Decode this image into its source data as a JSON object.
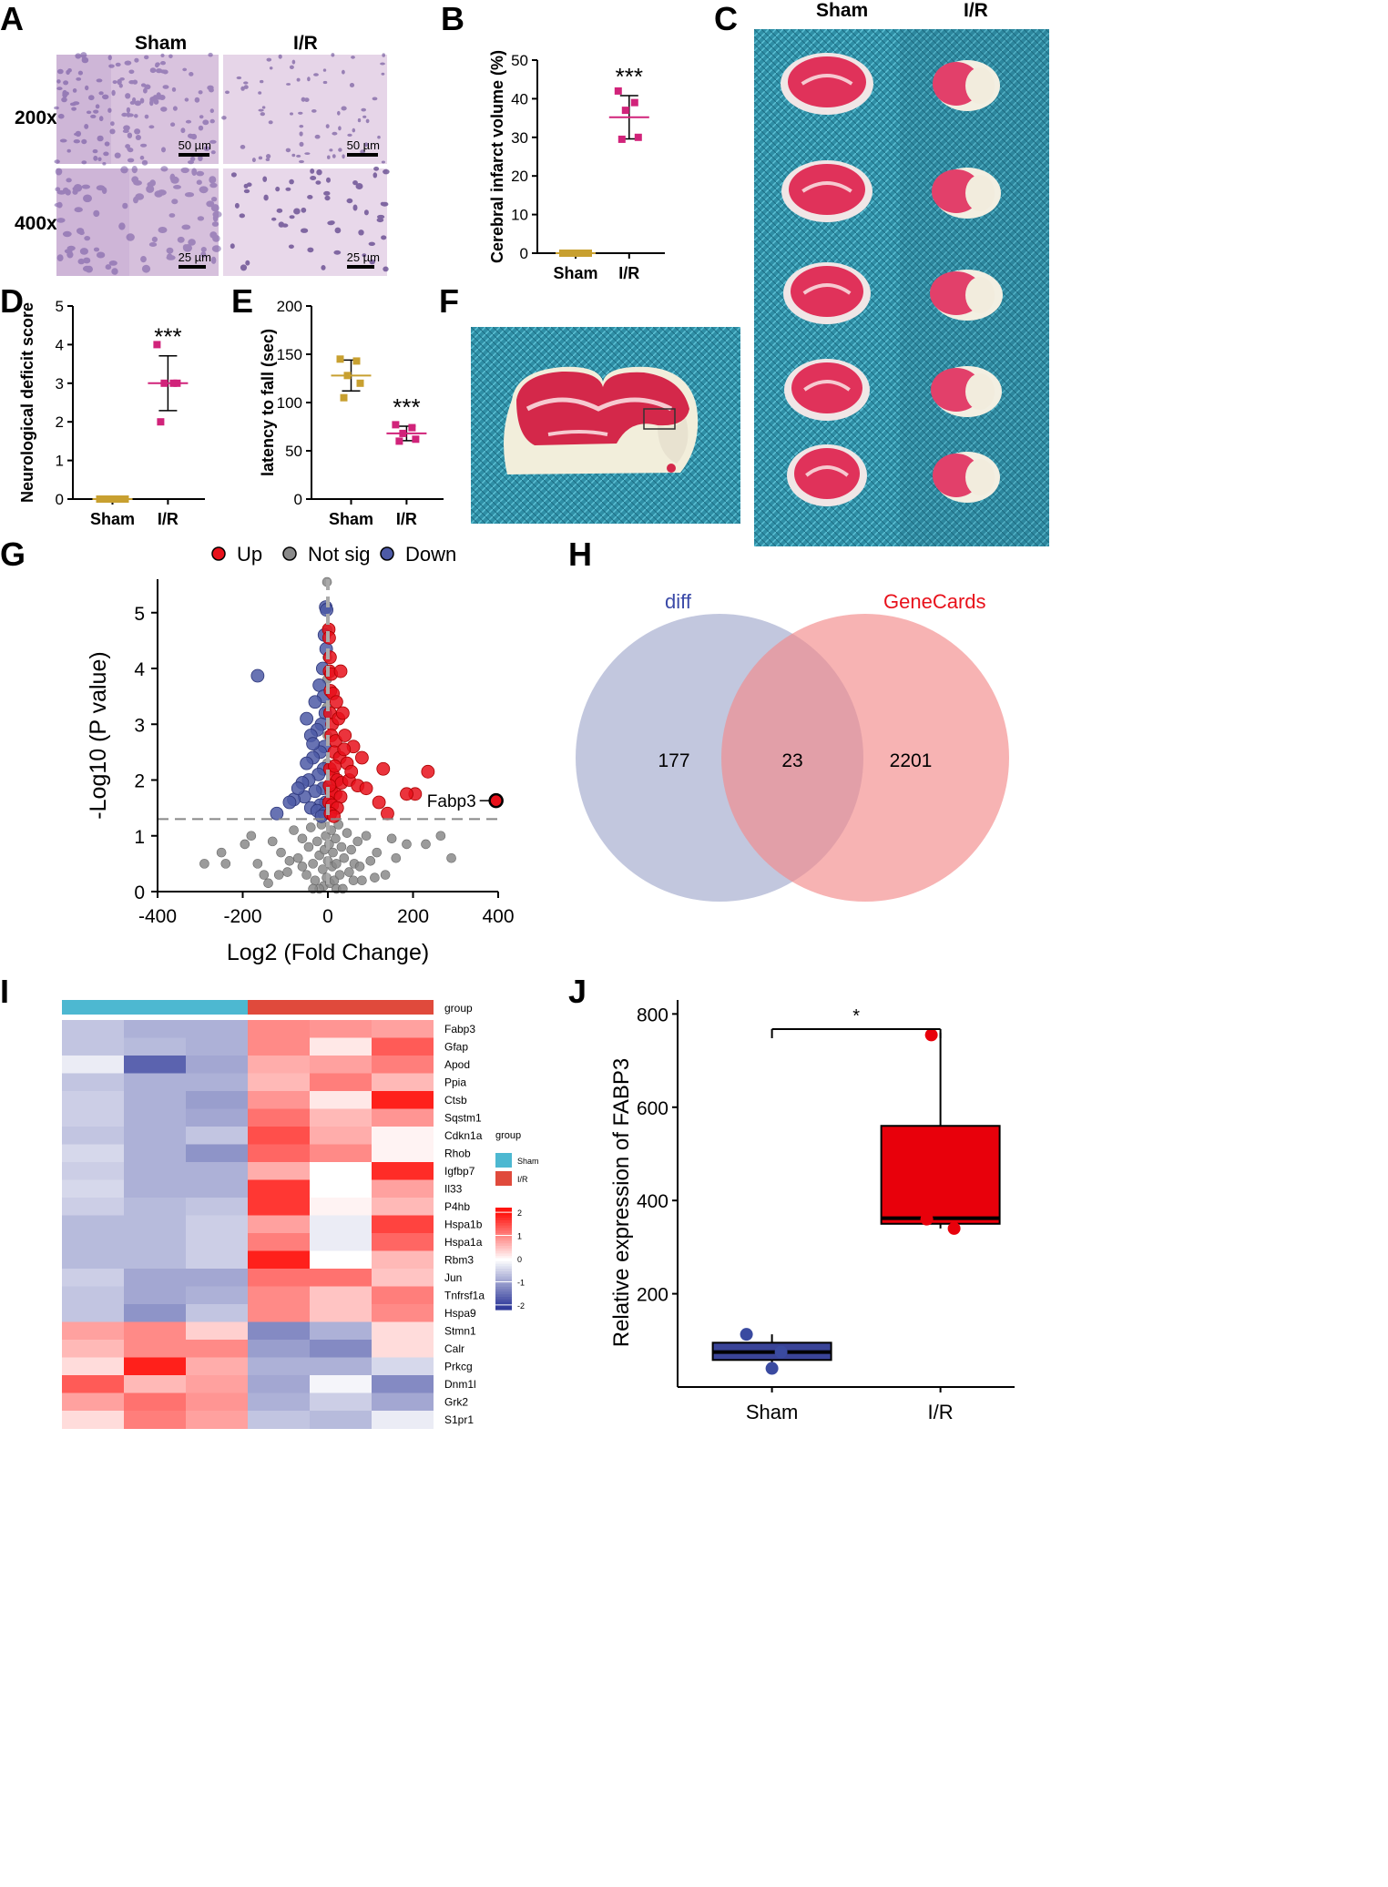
{
  "panels": {
    "A": {
      "label": "A",
      "col_headers": [
        "Sham",
        "I/R"
      ],
      "row_headers": [
        "200x",
        "400x"
      ],
      "scale_bars": [
        "50 µm",
        "50 µm",
        "25 µm",
        "25 µm"
      ]
    },
    "B": {
      "label": "B"
    },
    "C": {
      "label": "C",
      "col_headers": [
        "Sham",
        "I/R"
      ]
    },
    "D": {
      "label": "D"
    },
    "E": {
      "label": "E"
    },
    "F": {
      "label": "F"
    },
    "G": {
      "label": "G"
    },
    "H": {
      "label": "H"
    },
    "I": {
      "label": "I"
    },
    "J": {
      "label": "J"
    }
  },
  "chart_data": [
    {
      "id": "B",
      "type": "scatter",
      "ylabel": "Cerebral infarct volume (%)",
      "categories": [
        "Sham",
        "I/R"
      ],
      "ylim": [
        0,
        50
      ],
      "yticks": [
        0,
        10,
        20,
        30,
        40,
        50
      ],
      "series": [
        {
          "name": "Sham",
          "values": [
            0,
            0,
            0,
            0,
            0
          ],
          "mean": 0,
          "sd": 0,
          "color": "#c8a030"
        },
        {
          "name": "I/R",
          "values": [
            42,
            39,
            37,
            30,
            29.5
          ],
          "mean": 35.2,
          "sd": 5.6,
          "color": "#d1237a"
        }
      ],
      "annotation": "***"
    },
    {
      "id": "D",
      "type": "scatter",
      "ylabel": "Neurological deficit score",
      "categories": [
        "Sham",
        "I/R"
      ],
      "ylim": [
        0,
        5
      ],
      "yticks": [
        0,
        1,
        2,
        3,
        4,
        5
      ],
      "series": [
        {
          "name": "Sham",
          "values": [
            0,
            0,
            0,
            0,
            0
          ],
          "mean": 0,
          "sd": 0,
          "color": "#c8a030"
        },
        {
          "name": "I/R",
          "values": [
            4,
            3,
            3,
            3,
            2
          ],
          "mean": 3,
          "sd": 0.71,
          "color": "#d1237a"
        }
      ],
      "annotation": "***"
    },
    {
      "id": "E",
      "type": "scatter",
      "ylabel": "latency to fall (sec)",
      "categories": [
        "Sham",
        "I/R"
      ],
      "ylim": [
        0,
        200
      ],
      "yticks": [
        0,
        50,
        100,
        150,
        200
      ],
      "series": [
        {
          "name": "Sham",
          "values": [
            145,
            143,
            128,
            120,
            105
          ],
          "mean": 128,
          "sd": 16,
          "color": "#c8a030"
        },
        {
          "name": "I/R",
          "values": [
            77,
            74,
            68,
            62,
            60
          ],
          "mean": 68,
          "sd": 7.5,
          "color": "#d1237a"
        }
      ],
      "annotation": "***"
    },
    {
      "id": "G",
      "type": "scatter",
      "xlabel": "Log2 (Fold Change)",
      "ylabel": "-Log10 (P value)",
      "xlim": [
        -400,
        400
      ],
      "ylim": [
        0,
        5.6
      ],
      "xticks": [
        -400,
        -200,
        0,
        200,
        400
      ],
      "yticks": [
        0,
        1,
        2,
        3,
        4,
        5
      ],
      "threshold_y": 1.3,
      "legend": [
        "Up",
        "Not sig",
        "Down"
      ],
      "colors": {
        "Up": "#e8111b",
        "Not sig": "#8a8a8a",
        "Down": "#4d5aa6"
      },
      "highlight": {
        "gene": "Fabp3",
        "x": 395,
        "y": 1.63
      },
      "up_points": [
        [
          2,
          4.7
        ],
        [
          3,
          4.55
        ],
        [
          5,
          4.2
        ],
        [
          4,
          3.95
        ],
        [
          8,
          3.9
        ],
        [
          30,
          3.95
        ],
        [
          6,
          3.6
        ],
        [
          12,
          3.55
        ],
        [
          20,
          3.4
        ],
        [
          5,
          3.2
        ],
        [
          10,
          3.0
        ],
        [
          25,
          3.1
        ],
        [
          35,
          3.2
        ],
        [
          8,
          2.8
        ],
        [
          18,
          2.7
        ],
        [
          40,
          2.8
        ],
        [
          60,
          2.6
        ],
        [
          15,
          2.5
        ],
        [
          28,
          2.4
        ],
        [
          45,
          2.3
        ],
        [
          5,
          2.2
        ],
        [
          12,
          2.1
        ],
        [
          22,
          2.0
        ],
        [
          32,
          1.95
        ],
        [
          50,
          2.0
        ],
        [
          70,
          1.9
        ],
        [
          8,
          1.8
        ],
        [
          18,
          1.75
        ],
        [
          30,
          1.7
        ],
        [
          3,
          1.6
        ],
        [
          10,
          1.55
        ],
        [
          22,
          1.5
        ],
        [
          6,
          1.4
        ],
        [
          14,
          1.35
        ],
        [
          4,
          1.9
        ],
        [
          16,
          2.25
        ],
        [
          38,
          2.55
        ],
        [
          55,
          2.15
        ],
        [
          130,
          2.2
        ],
        [
          235,
          2.15
        ],
        [
          205,
          1.75
        ],
        [
          185,
          1.75
        ],
        [
          120,
          1.6
        ],
        [
          140,
          1.4
        ],
        [
          90,
          1.85
        ],
        [
          80,
          2.4
        ]
      ],
      "down_points": [
        [
          -5,
          5.1
        ],
        [
          -3,
          5.05
        ],
        [
          -8,
          4.6
        ],
        [
          -4,
          4.35
        ],
        [
          -12,
          4.0
        ],
        [
          -165,
          3.87
        ],
        [
          -20,
          3.7
        ],
        [
          -10,
          3.5
        ],
        [
          -30,
          3.4
        ],
        [
          -6,
          3.2
        ],
        [
          -15,
          3.0
        ],
        [
          -25,
          2.9
        ],
        [
          -40,
          2.8
        ],
        [
          -8,
          2.6
        ],
        [
          -18,
          2.5
        ],
        [
          -35,
          2.4
        ],
        [
          -50,
          2.3
        ],
        [
          -10,
          2.2
        ],
        [
          -22,
          2.1
        ],
        [
          -45,
          2.0
        ],
        [
          -60,
          1.95
        ],
        [
          -12,
          1.85
        ],
        [
          -30,
          1.8
        ],
        [
          -55,
          1.7
        ],
        [
          -80,
          1.65
        ],
        [
          -5,
          1.6
        ],
        [
          -18,
          1.55
        ],
        [
          -40,
          1.5
        ],
        [
          -90,
          1.6
        ],
        [
          -25,
          1.45
        ],
        [
          -8,
          1.4
        ],
        [
          -120,
          1.4
        ],
        [
          -15,
          1.35
        ],
        [
          -35,
          2.65
        ],
        [
          -50,
          3.1
        ],
        [
          -70,
          1.85
        ]
      ],
      "ns_points": [
        [
          -2,
          5.55
        ],
        [
          -3,
          5.1
        ],
        [
          -1,
          4.7
        ],
        [
          -1,
          4.2
        ],
        [
          -2,
          3.8
        ],
        [
          -3,
          3.3
        ],
        [
          -1,
          2.8
        ],
        [
          -2,
          2.3
        ],
        [
          -1,
          1.9
        ],
        [
          -2,
          1.5
        ],
        [
          -250,
          0.7
        ],
        [
          -290,
          0.5
        ],
        [
          -195,
          0.85
        ],
        [
          -165,
          0.5
        ],
        [
          -150,
          0.3
        ],
        [
          -130,
          0.9
        ],
        [
          -110,
          0.7
        ],
        [
          -95,
          0.35
        ],
        [
          -80,
          1.1
        ],
        [
          -70,
          0.6
        ],
        [
          -60,
          0.95
        ],
        [
          -50,
          0.3
        ],
        [
          -45,
          0.8
        ],
        [
          -40,
          1.15
        ],
        [
          -35,
          0.5
        ],
        [
          -30,
          0.2
        ],
        [
          -25,
          0.9
        ],
        [
          -20,
          0.65
        ],
        [
          -15,
          1.2
        ],
        [
          -12,
          0.4
        ],
        [
          -10,
          0.1
        ],
        [
          -8,
          0.75
        ],
        [
          -5,
          1.0
        ],
        [
          -3,
          0.25
        ],
        [
          0,
          0.55
        ],
        [
          3,
          0.85
        ],
        [
          5,
          0.15
        ],
        [
          8,
          1.1
        ],
        [
          10,
          0.45
        ],
        [
          12,
          0.7
        ],
        [
          15,
          0.2
        ],
        [
          18,
          0.95
        ],
        [
          20,
          0.5
        ],
        [
          25,
          1.2
        ],
        [
          28,
          0.3
        ],
        [
          32,
          0.8
        ],
        [
          38,
          0.6
        ],
        [
          45,
          1.05
        ],
        [
          50,
          0.35
        ],
        [
          55,
          0.75
        ],
        [
          62,
          0.5
        ],
        [
          70,
          0.9
        ],
        [
          80,
          0.2
        ],
        [
          90,
          1.0
        ],
        [
          100,
          0.55
        ],
        [
          115,
          0.7
        ],
        [
          135,
          0.3
        ],
        [
          150,
          0.95
        ],
        [
          160,
          0.6
        ],
        [
          185,
          0.85
        ],
        [
          230,
          0.85
        ],
        [
          265,
          1.0
        ],
        [
          290,
          0.6
        ],
        [
          -180,
          1.0
        ],
        [
          -240,
          0.5
        ],
        [
          -140,
          0.15
        ],
        [
          -20,
          0.05
        ],
        [
          20,
          0.05
        ],
        [
          -60,
          0.45
        ],
        [
          60,
          0.2
        ],
        [
          35,
          0.05
        ],
        [
          -35,
          0.05
        ],
        [
          75,
          0.45
        ],
        [
          -90,
          0.55
        ],
        [
          110,
          0.25
        ],
        [
          -115,
          0.3
        ]
      ]
    },
    {
      "id": "H",
      "type": "venn",
      "sets": [
        {
          "name": "diff",
          "only": 177,
          "color": "#9aa2c8"
        },
        {
          "name": "GeneCards",
          "only": 2201,
          "color": "#f28b8b"
        }
      ],
      "intersection": 23
    },
    {
      "id": "I",
      "type": "heatmap",
      "group_label": "group",
      "groups": [
        "Sham",
        "Sham",
        "Sham",
        "I/R",
        "I/R",
        "I/R"
      ],
      "group_colors": {
        "Sham": "#4db8d1",
        "I/R": "#e04a3c"
      },
      "legend_title": "group",
      "legend_ticks": [
        2,
        1,
        0,
        -1,
        -2
      ],
      "rows": [
        "Fabp3",
        "Gfap",
        "Apod",
        "Ppia",
        "Ctsb",
        "Sqstm1",
        "Cdkn1a",
        "Rhob",
        "Igfbp7",
        "Il33",
        "P4hb",
        "Hspa1b",
        "Hspa1a",
        "Rbm3",
        "Jun",
        "Tnfrsf1a",
        "Hspa9",
        "Stmn1",
        "Calr",
        "Prkcg",
        "Dnm1l",
        "Grk2",
        "S1pr1"
      ],
      "values": [
        [
          -0.6,
          -0.8,
          -0.8,
          1.0,
          0.9,
          0.8
        ],
        [
          -0.6,
          -0.7,
          -0.8,
          1.0,
          0.2,
          1.4
        ],
        [
          -0.2,
          -1.6,
          -0.9,
          0.7,
          0.8,
          1.1
        ],
        [
          -0.6,
          -0.8,
          -0.8,
          0.6,
          1.1,
          0.6
        ],
        [
          -0.5,
          -0.8,
          -1.0,
          0.9,
          0.2,
          1.9
        ],
        [
          -0.5,
          -0.8,
          -0.9,
          1.2,
          0.6,
          0.9
        ],
        [
          -0.6,
          -0.8,
          -0.6,
          1.5,
          0.7,
          0.1
        ],
        [
          -0.4,
          -0.8,
          -1.1,
          1.3,
          1.0,
          0.1
        ],
        [
          -0.5,
          -0.8,
          -0.8,
          0.7,
          0.0,
          1.8
        ],
        [
          -0.4,
          -0.8,
          -0.8,
          1.7,
          0.0,
          0.8
        ],
        [
          -0.5,
          -0.7,
          -0.6,
          1.7,
          0.1,
          0.6
        ],
        [
          -0.7,
          -0.7,
          -0.5,
          0.8,
          -0.2,
          1.6
        ],
        [
          -0.7,
          -0.7,
          -0.5,
          1.1,
          -0.2,
          1.3
        ],
        [
          -0.7,
          -0.7,
          -0.5,
          1.9,
          0.0,
          0.6
        ],
        [
          -0.5,
          -0.9,
          -0.9,
          1.2,
          1.2,
          0.5
        ],
        [
          -0.6,
          -0.9,
          -0.8,
          1.0,
          0.5,
          1.1
        ],
        [
          -0.6,
          -1.1,
          -0.6,
          1.0,
          0.5,
          1.0
        ],
        [
          0.8,
          1.0,
          0.4,
          -1.2,
          -0.8,
          0.3
        ],
        [
          0.6,
          1.0,
          1.0,
          -1.0,
          -1.2,
          0.3
        ],
        [
          0.3,
          1.9,
          0.7,
          -0.8,
          -0.8,
          -0.4
        ],
        [
          1.4,
          0.6,
          0.8,
          -0.9,
          -0.1,
          -1.2
        ],
        [
          0.8,
          1.2,
          0.9,
          -0.8,
          -0.5,
          -0.9
        ],
        [
          0.3,
          1.1,
          0.8,
          -0.6,
          -0.7,
          -0.2
        ]
      ]
    },
    {
      "id": "J",
      "type": "box",
      "ylabel": "Relative expression of FABP3",
      "categories": [
        "Sham",
        "I/R"
      ],
      "ylim": [
        0,
        830
      ],
      "yticks": [
        200,
        400,
        600,
        800
      ],
      "boxes": [
        {
          "name": "Sham",
          "q1": 58,
          "median": 75,
          "q3": 95,
          "whisker_low": 40,
          "whisker_high": 113,
          "points": [
            113,
            75,
            40
          ],
          "color": "#3a4498",
          "point_color": "#3a4aa0"
        },
        {
          "name": "I/R",
          "q1": 350,
          "median": 362,
          "q3": 560,
          "whisker_low": 340,
          "whisker_high": 760,
          "points": [
            755,
            360,
            340
          ],
          "color": "#e8000b",
          "point_color": "#e8000b"
        }
      ],
      "significance": "*"
    }
  ]
}
